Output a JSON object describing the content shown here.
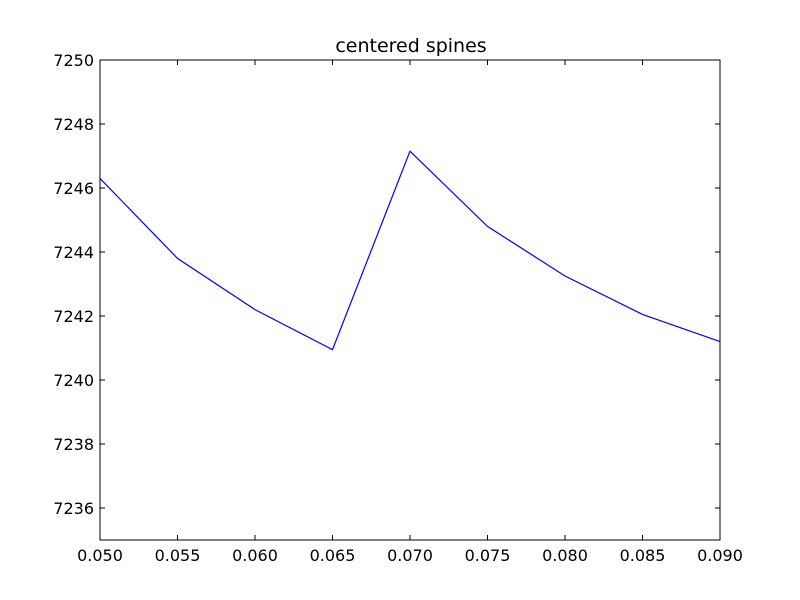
{
  "chart_data": {
    "type": "line",
    "title": "centered spines",
    "xlabel": "",
    "ylabel": "",
    "xlim": [
      0.05,
      0.09
    ],
    "ylim": [
      7235,
      7250
    ],
    "xticks": [
      "0.050",
      "0.055",
      "0.060",
      "0.065",
      "0.070",
      "0.075",
      "0.080",
      "0.085",
      "0.090"
    ],
    "yticks": [
      "7236",
      "7238",
      "7240",
      "7242",
      "7244",
      "7246",
      "7248",
      "7250"
    ],
    "grid": false,
    "series": [
      {
        "color": "#0000ff",
        "x": [
          0.05,
          0.055,
          0.06,
          0.065,
          0.07,
          0.075,
          0.08,
          0.085,
          0.09
        ],
        "y": [
          7246.3,
          7243.8,
          7242.2,
          7240.95,
          7247.15,
          7244.8,
          7243.25,
          7242.05,
          7241.2
        ]
      }
    ]
  }
}
